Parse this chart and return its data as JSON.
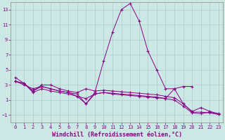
{
  "x": [
    0,
    1,
    2,
    3,
    4,
    5,
    6,
    7,
    8,
    9,
    10,
    11,
    12,
    13,
    14,
    15,
    16,
    17,
    18,
    19,
    20,
    21,
    22,
    23
  ],
  "line1": [
    4.0,
    3.2,
    2.2,
    2.8,
    2.5,
    2.2,
    2.0,
    1.8,
    0.5,
    2.0,
    6.2,
    10.0,
    13.0,
    13.8,
    11.5,
    7.5,
    5.0,
    2.5,
    2.5,
    0.5,
    -0.5,
    0.0,
    -0.5,
    -0.8
  ],
  "line2": [
    3.5,
    3.2,
    2.2,
    3.0,
    3.0,
    2.5,
    2.2,
    2.0,
    2.5,
    2.2,
    2.3,
    2.2,
    2.1,
    2.0,
    1.9,
    1.8,
    1.7,
    1.5,
    1.3,
    0.5,
    -0.6,
    -0.6,
    -0.7,
    -0.9
  ],
  "line3": [
    3.5,
    3.2,
    2.0,
    2.5,
    2.2,
    2.0,
    1.8,
    1.5,
    1.2,
    1.8,
    2.0,
    1.9,
    1.8,
    1.7,
    1.6,
    1.5,
    1.4,
    1.2,
    1.0,
    0.2,
    -0.7,
    -0.8,
    -0.6,
    -0.9
  ],
  "line4": [
    3.5,
    3.0,
    2.5,
    2.8,
    2.5,
    2.2,
    2.0,
    1.5,
    0.5,
    1.8,
    2.0,
    1.8,
    1.7,
    1.6,
    1.5,
    1.4,
    1.3,
    1.2,
    2.5,
    2.8,
    2.8,
    null,
    null,
    null
  ],
  "background_color": "#cce8e4",
  "grid_color": "#aaccca",
  "line_color": "#880088",
  "xlabel": "Windchill (Refroidissement éolien,°C)",
  "ylim": [
    -2,
    14
  ],
  "xlim": [
    -0.5,
    23.5
  ],
  "yticks": [
    -1,
    1,
    3,
    5,
    7,
    9,
    11,
    13
  ],
  "xticks": [
    0,
    1,
    2,
    3,
    4,
    5,
    6,
    7,
    8,
    9,
    10,
    11,
    12,
    13,
    14,
    15,
    16,
    17,
    18,
    19,
    20,
    21,
    22,
    23
  ],
  "tick_fontsize": 5,
  "label_fontsize": 6
}
